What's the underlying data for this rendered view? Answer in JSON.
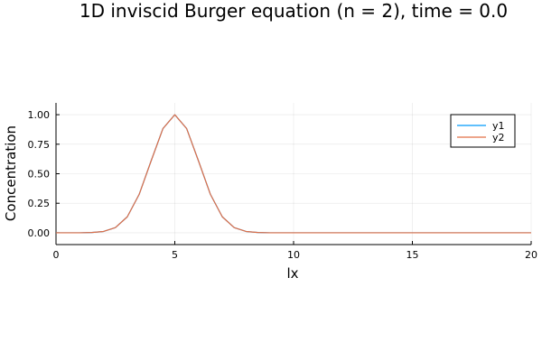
{
  "chart_data": {
    "type": "line",
    "title": "1D inviscid Burger equation (n = 2), time = 0.0",
    "xlabel": "lx",
    "ylabel": "Concentration",
    "xlim": [
      0,
      20
    ],
    "ylim": [
      -0.1,
      1.1
    ],
    "xticks": [
      0,
      5,
      10,
      15,
      20
    ],
    "xtick_labels": [
      "0",
      "5",
      "10",
      "15",
      "20"
    ],
    "yticks": [
      0.0,
      0.25,
      0.5,
      0.75,
      1.0
    ],
    "ytick_labels": [
      "0.00",
      "0.25",
      "0.50",
      "0.75",
      "1.00"
    ],
    "grid": true,
    "legend_position": "top-right",
    "series": [
      {
        "name": "y1",
        "color": "#009AFA",
        "x": [
          0,
          0.5,
          1,
          1.5,
          2,
          2.5,
          3,
          3.5,
          4,
          4.5,
          5,
          5.5,
          6,
          6.5,
          7,
          7.5,
          8,
          8.5,
          9,
          9.5,
          10,
          11,
          12,
          13,
          14,
          15,
          16,
          17,
          18,
          19,
          20
        ],
        "values": [
          0.0,
          0.0,
          0.0,
          0.002,
          0.011,
          0.044,
          0.135,
          0.325,
          0.607,
          0.882,
          1.0,
          0.882,
          0.607,
          0.325,
          0.135,
          0.044,
          0.011,
          0.002,
          0.0,
          0.0,
          0.0,
          0.0,
          0.0,
          0.0,
          0.0,
          0.0,
          0.0,
          0.0,
          0.0,
          0.0,
          0.0
        ]
      },
      {
        "name": "y2",
        "color": "#E26F46",
        "x": [
          0,
          0.5,
          1,
          1.5,
          2,
          2.5,
          3,
          3.5,
          4,
          4.5,
          5,
          5.5,
          6,
          6.5,
          7,
          7.5,
          8,
          8.5,
          9,
          9.5,
          10,
          11,
          12,
          13,
          14,
          15,
          16,
          17,
          18,
          19,
          20
        ],
        "values": [
          0.0,
          0.0,
          0.0,
          0.002,
          0.011,
          0.044,
          0.135,
          0.325,
          0.607,
          0.882,
          1.0,
          0.882,
          0.607,
          0.325,
          0.135,
          0.044,
          0.011,
          0.002,
          0.0,
          0.0,
          0.0,
          0.0,
          0.0,
          0.0,
          0.0,
          0.0,
          0.0,
          0.0,
          0.0,
          0.0,
          0.0
        ]
      }
    ]
  }
}
